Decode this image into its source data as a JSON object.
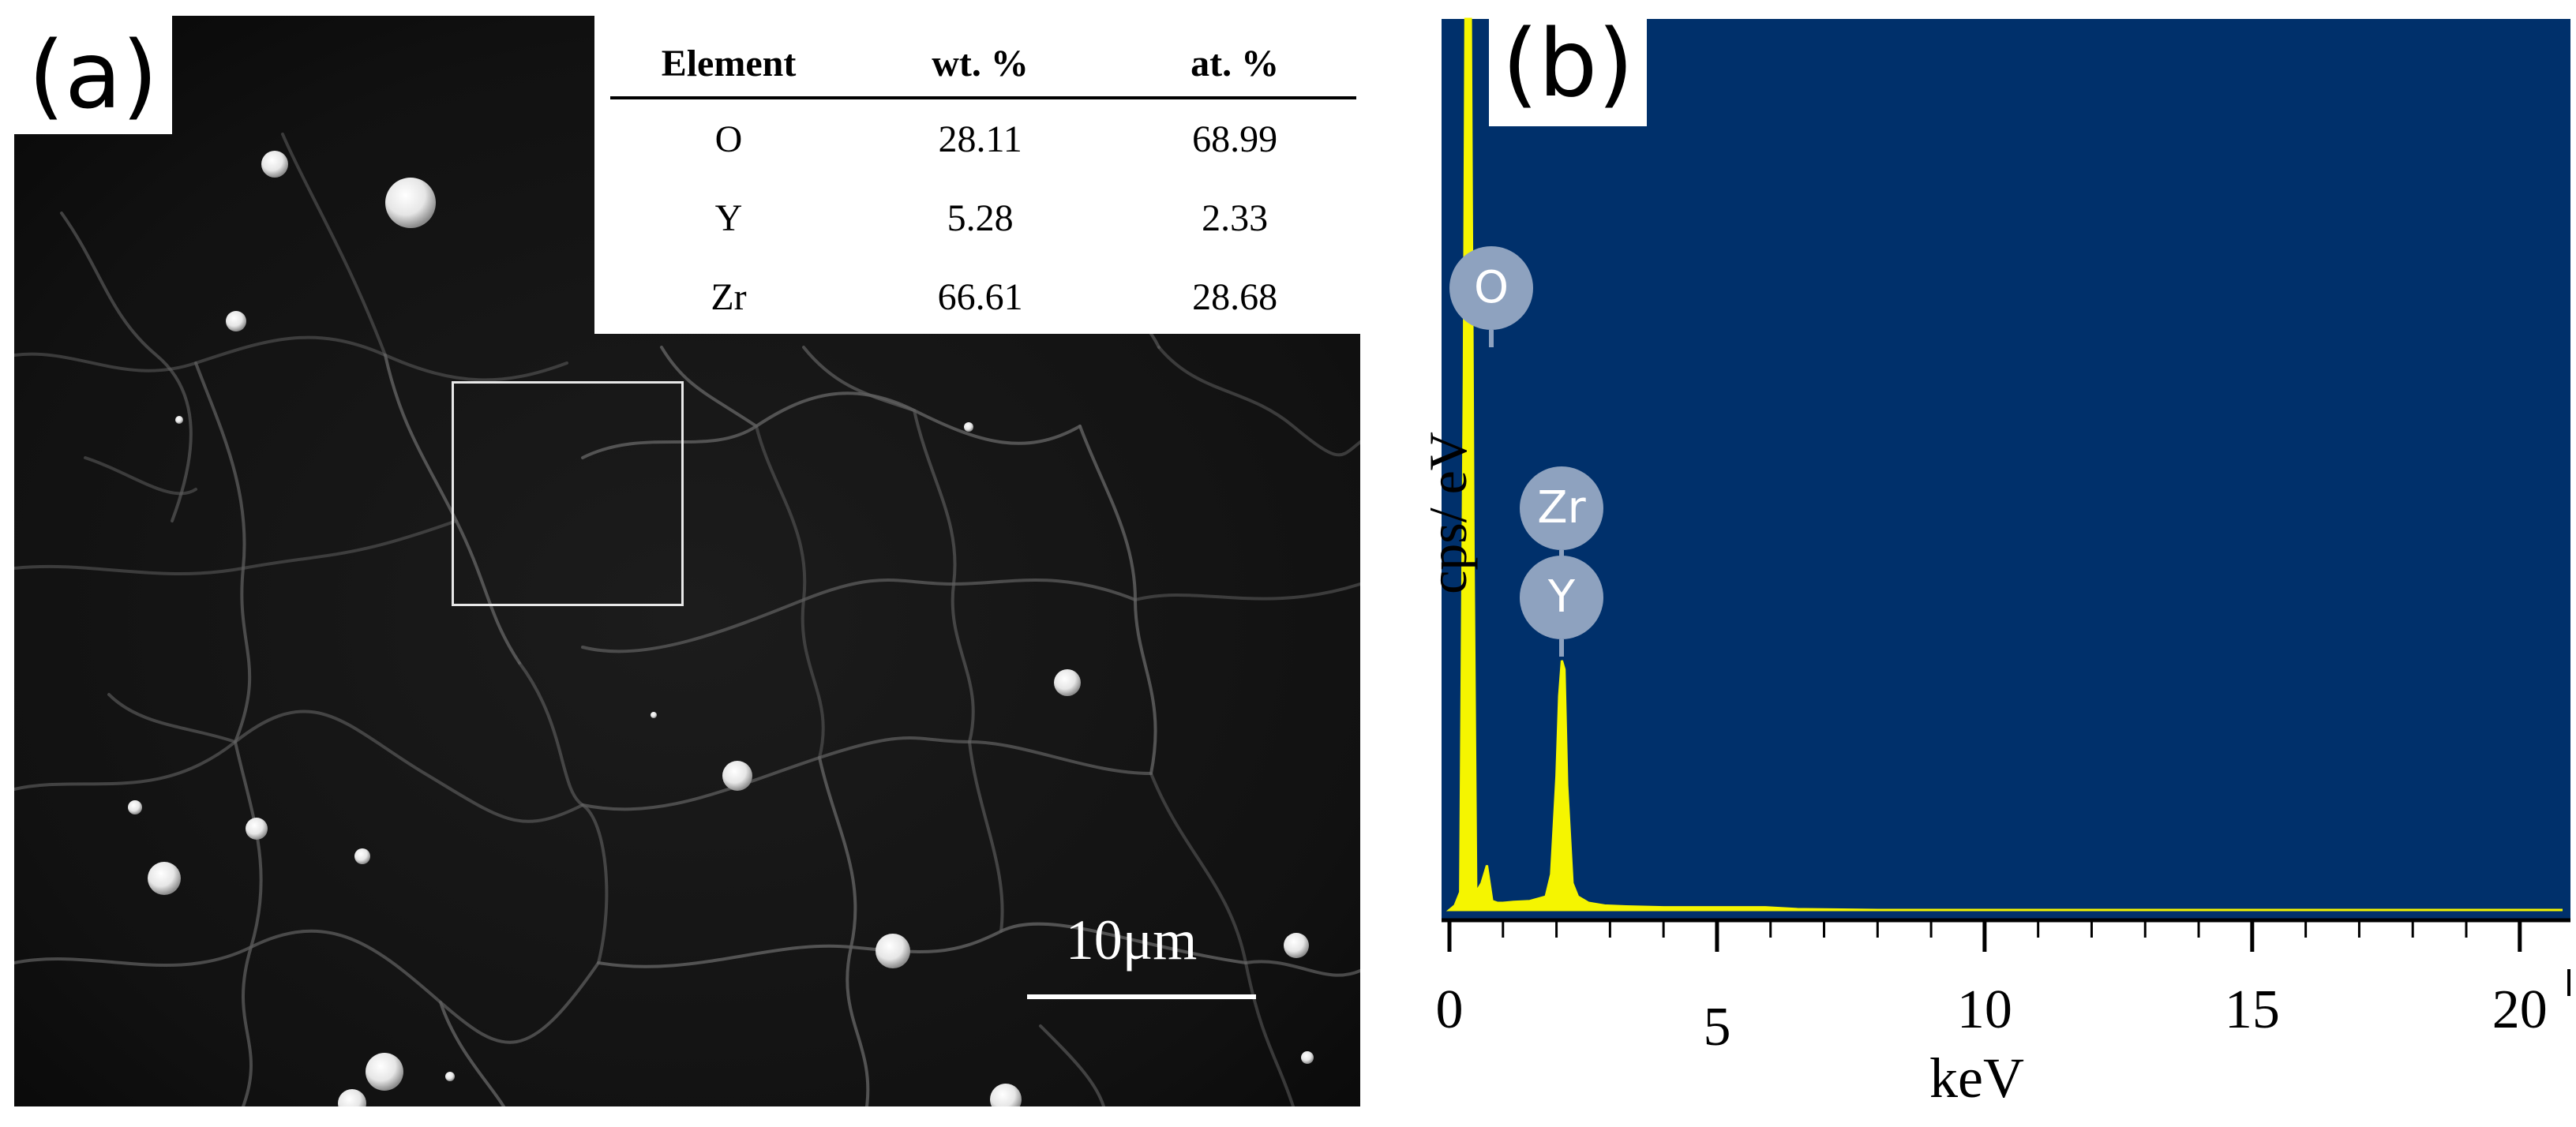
{
  "panel_a": {
    "label": "(a)",
    "scale_bar": "10μm",
    "table": {
      "headers": [
        "Element",
        "wt. %",
        "at. %"
      ],
      "rows": [
        [
          "O",
          "28.11",
          "68.99"
        ],
        [
          "Y",
          "5.28",
          "2.33"
        ],
        [
          "Zr",
          "66.61",
          "28.68"
        ]
      ]
    }
  },
  "panel_b": {
    "label": "(b)",
    "peak_labels": [
      "O",
      "Zr",
      "Y"
    ],
    "colors": {
      "background": "#00306b",
      "spectrum": "#f5f500",
      "tag": "#8ea2bf"
    }
  },
  "chart_data": {
    "type": "line",
    "title": "",
    "xlabel": "keV",
    "ylabel": "cps/ eV",
    "xlim": [
      0,
      20.8
    ],
    "ylim": [
      0,
      100
    ],
    "x_ticks": [
      0,
      5,
      10,
      15,
      20
    ],
    "grid": false,
    "series": [
      {
        "x": [
          0,
          0.1,
          0.2,
          0.27,
          0.3,
          0.35,
          0.4,
          0.45,
          0.5,
          0.6,
          0.7,
          0.8,
          0.9,
          1.0,
          1.2,
          1.5,
          1.8,
          1.9,
          2.0,
          2.05,
          2.1,
          2.15,
          2.2,
          2.3,
          2.4,
          2.6,
          2.9,
          3.3,
          4.0,
          5.0,
          5.9,
          6.5,
          8,
          12,
          16,
          20.8
        ],
        "y": [
          0,
          0.5,
          2,
          60,
          100,
          100,
          100,
          40,
          2,
          3,
          5,
          1,
          0.8,
          0.8,
          0.9,
          1.0,
          1.5,
          4,
          15,
          24,
          28,
          27,
          14,
          3,
          1.5,
          0.8,
          0.5,
          0.4,
          0.3,
          0.3,
          0.3,
          0.1,
          0,
          0,
          0,
          0
        ]
      }
    ]
  }
}
